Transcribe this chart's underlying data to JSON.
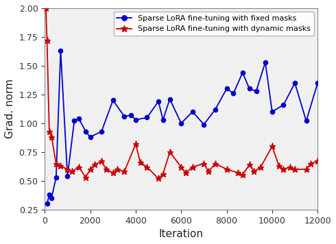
{
  "blue_x": [
    100,
    200,
    300,
    500,
    700,
    1000,
    1300,
    1500,
    1800,
    2000,
    2500,
    3000,
    3500,
    3800,
    4000,
    4500,
    5000,
    5200,
    5500,
    6000,
    6500,
    7000,
    7500,
    8000,
    8300,
    8700,
    9000,
    9300,
    9700,
    10000,
    10500,
    11000,
    11500,
    12000
  ],
  "blue_y": [
    0.3,
    0.38,
    0.35,
    0.53,
    1.63,
    0.54,
    1.02,
    1.04,
    0.93,
    0.88,
    0.93,
    1.2,
    1.06,
    1.07,
    1.03,
    1.05,
    1.19,
    1.03,
    1.21,
    1.0,
    1.1,
    0.99,
    1.12,
    1.3,
    1.26,
    1.44,
    1.3,
    1.28,
    1.53,
    1.1,
    1.16,
    1.35,
    1.02,
    1.35
  ],
  "red_x": [
    50,
    100,
    200,
    300,
    500,
    700,
    1000,
    1200,
    1500,
    1800,
    2000,
    2200,
    2500,
    2700,
    3000,
    3200,
    3500,
    4000,
    4200,
    4500,
    5000,
    5200,
    5500,
    6000,
    6200,
    6500,
    7000,
    7200,
    7500,
    8000,
    8500,
    8700,
    9000,
    9200,
    9500,
    10000,
    10300,
    10500,
    10800,
    11000,
    11500,
    11700,
    12000
  ],
  "red_y": [
    2.0,
    1.72,
    0.93,
    0.88,
    0.65,
    0.63,
    0.6,
    0.58,
    0.62,
    0.53,
    0.6,
    0.64,
    0.67,
    0.6,
    0.57,
    0.6,
    0.58,
    0.82,
    0.66,
    0.62,
    0.52,
    0.56,
    0.75,
    0.62,
    0.57,
    0.62,
    0.65,
    0.58,
    0.65,
    0.6,
    0.57,
    0.55,
    0.64,
    0.58,
    0.62,
    0.8,
    0.63,
    0.6,
    0.62,
    0.6,
    0.6,
    0.65,
    0.67
  ],
  "blue_color": "#0000cc",
  "red_color": "#cc0000",
  "xlabel": "Iteration",
  "ylabel": "Grad. norm",
  "ylim": [
    0.25,
    2.0
  ],
  "xlim": [
    0,
    12000
  ],
  "yticks": [
    0.25,
    0.5,
    0.75,
    1.0,
    1.25,
    1.5,
    1.75,
    2.0
  ],
  "xticks": [
    0,
    2000,
    4000,
    6000,
    8000,
    10000,
    12000
  ],
  "blue_label": "Sparse LoRA fine-tuning with fixed masks",
  "red_label": "Sparse LoRA fine-tuning with dynamic masks",
  "figsize": [
    4.9,
    3.56
  ],
  "dpi": 100,
  "bg_color": "#f0f0f0"
}
